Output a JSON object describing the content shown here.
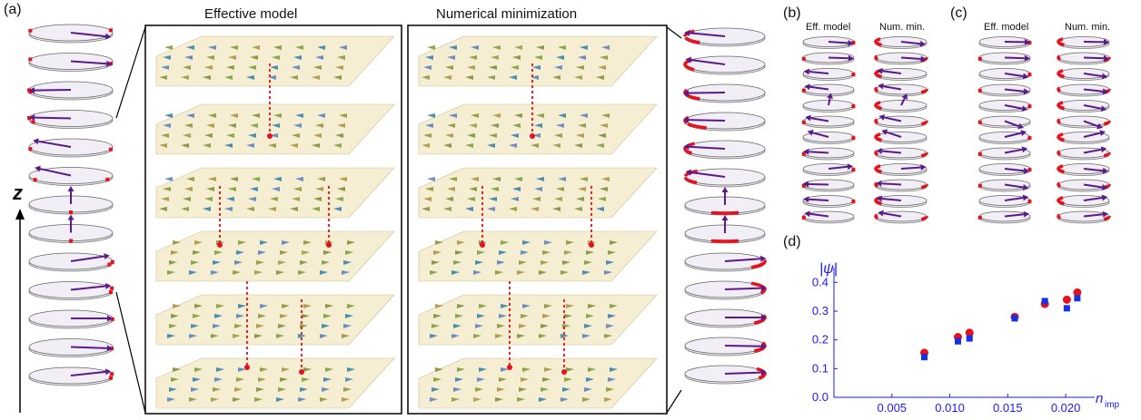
{
  "panels": {
    "a": {
      "letter": "(a)",
      "left_title": "Effective model",
      "right_title": "Numerical minimization",
      "axis_label": "z"
    },
    "b": {
      "letter": "(b)",
      "col1": "Eff. model",
      "col2": "Num. min."
    },
    "c": {
      "letter": "(c)",
      "col1": "Eff. model",
      "col2": "Num. min."
    },
    "d": {
      "letter": "(d)"
    }
  },
  "colors": {
    "axis": "#1a1aff",
    "red": "#e8101a",
    "blue": "#1530e6",
    "arrow": "#5b1a8c",
    "layer": "#f6edcf"
  },
  "chart_data": {
    "type": "scatter",
    "ylabel": "|ψ|",
    "xlabel_main": "n",
    "xlabel_sub": "imp",
    "xticks": [
      "0.005",
      "0.010",
      "0.015",
      "0.020"
    ],
    "yticks": [
      "0.0",
      "0.1",
      "0.2",
      "0.3",
      "0.4"
    ],
    "xlim": [
      0,
      0.0225
    ],
    "ylim": [
      0,
      0.42
    ],
    "series": [
      {
        "marker": "circle",
        "color": "red",
        "points": [
          [
            0.0078,
            0.155
          ],
          [
            0.0107,
            0.21
          ],
          [
            0.0117,
            0.225
          ],
          [
            0.0156,
            0.28
          ],
          [
            0.0182,
            0.325
          ],
          [
            0.0201,
            0.34
          ],
          [
            0.021,
            0.365
          ]
        ]
      },
      {
        "marker": "square",
        "color": "blue",
        "points": [
          [
            0.0078,
            0.14
          ],
          [
            0.0107,
            0.195
          ],
          [
            0.0117,
            0.205
          ],
          [
            0.0156,
            0.275
          ],
          [
            0.0182,
            0.335
          ],
          [
            0.0201,
            0.31
          ],
          [
            0.021,
            0.345
          ]
        ]
      }
    ]
  }
}
